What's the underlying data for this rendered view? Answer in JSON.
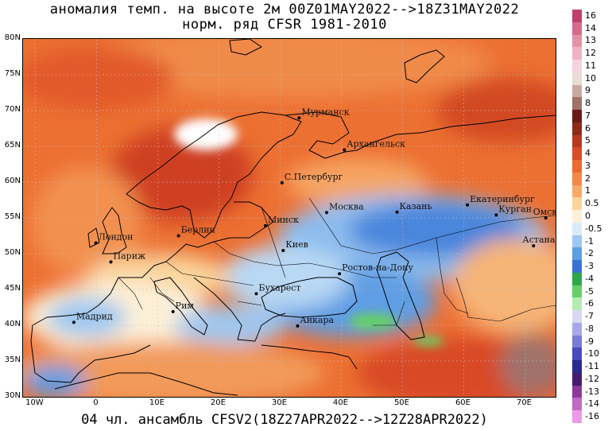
{
  "title_line1": "аномалия темп. на высоте 2м 00Z01MAY2022-->18Z31MAY2022",
  "title_line2": "норм. ряд CFSR 1981-2010",
  "bottom_caption": "04 чл. ансамбль CFSV2(18Z27APR2022-->12Z28APR2022)",
  "lat_labels": [
    "80N",
    "75N",
    "70N",
    "65N",
    "60N",
    "55N",
    "50N",
    "45N",
    "40N",
    "35N",
    "30N"
  ],
  "lon_labels": [
    "10W",
    "0",
    "10E",
    "20E",
    "30E",
    "40E",
    "50E",
    "60E",
    "70E"
  ],
  "cities": [
    {
      "name": "Мурманск",
      "lon": 33.1,
      "lat": 68.97
    },
    {
      "name": "Архангельск",
      "lon": 40.5,
      "lat": 64.5
    },
    {
      "name": "С.Петербург",
      "lon": 30.3,
      "lat": 59.9
    },
    {
      "name": "Москва",
      "lon": 37.6,
      "lat": 55.75
    },
    {
      "name": "Казань",
      "lon": 49.1,
      "lat": 55.8
    },
    {
      "name": "Екатеринбург",
      "lon": 60.6,
      "lat": 56.8
    },
    {
      "name": "Курган",
      "lon": 65.3,
      "lat": 55.4
    },
    {
      "name": "Омск",
      "lon": 73.4,
      "lat": 55.0
    },
    {
      "name": "Астана",
      "lon": 71.4,
      "lat": 51.1
    },
    {
      "name": "Минск",
      "lon": 27.6,
      "lat": 53.9
    },
    {
      "name": "Киев",
      "lon": 30.5,
      "lat": 50.45
    },
    {
      "name": "Берлин",
      "lon": 13.4,
      "lat": 52.5
    },
    {
      "name": "Лондон",
      "lon": -0.1,
      "lat": 51.5
    },
    {
      "name": "Париж",
      "lon": 2.35,
      "lat": 48.85
    },
    {
      "name": "Ростов-на-Дону",
      "lon": 39.7,
      "lat": 47.2
    },
    {
      "name": "Бухарест",
      "lon": 26.1,
      "lat": 44.4
    },
    {
      "name": "Рим",
      "lon": 12.5,
      "lat": 41.9
    },
    {
      "name": "Мадрид",
      "lon": -3.7,
      "lat": 40.4
    },
    {
      "name": "Анкара",
      "lon": 32.85,
      "lat": 39.9
    }
  ],
  "legend": [
    {
      "label": "16",
      "color": "#c0406a"
    },
    {
      "label": "14",
      "color": "#d66a8a"
    },
    {
      "label": "13",
      "color": "#e592a8"
    },
    {
      "label": "12",
      "color": "#eeb3c3"
    },
    {
      "label": "11",
      "color": "#f6d3dc"
    },
    {
      "label": "10",
      "color": "#e8ddd6"
    },
    {
      "label": "9",
      "color": "#c9aaa0"
    },
    {
      "label": "8",
      "color": "#a0726a"
    },
    {
      "label": "7",
      "color": "#6a1a14"
    },
    {
      "label": "6",
      "color": "#8e2a1a"
    },
    {
      "label": "5",
      "color": "#b8391e"
    },
    {
      "label": "4",
      "color": "#d94a25"
    },
    {
      "label": "3",
      "color": "#ea6a34"
    },
    {
      "label": "2",
      "color": "#f2884a"
    },
    {
      "label": "1",
      "color": "#f7aa6a"
    },
    {
      "label": "0.5",
      "color": "#fbd49c"
    },
    {
      "label": "0",
      "color": "#fdf0d8"
    },
    {
      "label": "-0.5",
      "color": "#dbeaf8"
    },
    {
      "label": "-1",
      "color": "#9ec8f0"
    },
    {
      "label": "-2",
      "color": "#5e9ee4"
    },
    {
      "label": "-3",
      "color": "#3a72d4"
    },
    {
      "label": "-4",
      "color": "#2ea84a"
    },
    {
      "label": "-5",
      "color": "#66d066"
    },
    {
      "label": "-6",
      "color": "#b4ecb0"
    },
    {
      "label": "-7",
      "color": "#d8d8f4"
    },
    {
      "label": "-8",
      "color": "#a8a8e8"
    },
    {
      "label": "-9",
      "color": "#7a7ad8"
    },
    {
      "label": "-10",
      "color": "#4a4ac0"
    },
    {
      "label": "-11",
      "color": "#2a2a90"
    },
    {
      "label": "-12",
      "color": "#4a1a70"
    },
    {
      "label": "-13",
      "color": "#8a3a9a"
    },
    {
      "label": "-14",
      "color": "#c06ac4"
    },
    {
      "label": "-16",
      "color": "#ec9ae6"
    }
  ]
}
